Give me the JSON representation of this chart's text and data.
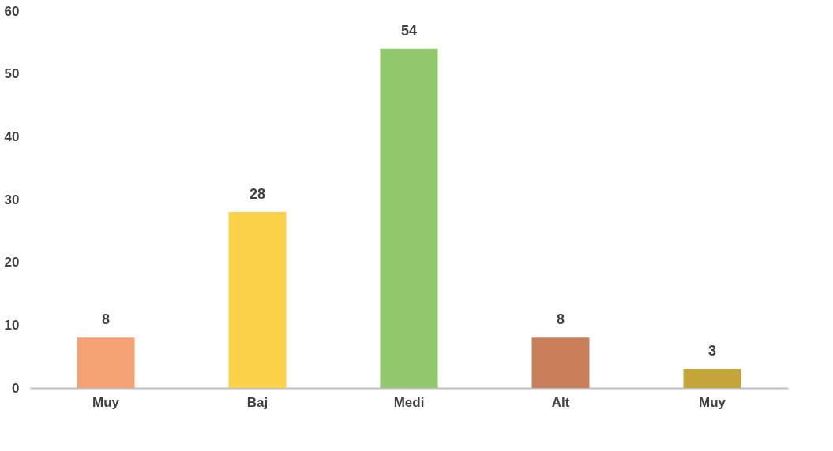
{
  "chart_data": {
    "type": "bar",
    "categories": [
      "Muy",
      "Baj",
      "Medi",
      "Alt",
      "Muy"
    ],
    "values": [
      8,
      28,
      54,
      8,
      3
    ],
    "colors": [
      "#f4a274",
      "#fbd24a",
      "#93c96e",
      "#c9805a",
      "#c4a53a"
    ],
    "ylim": [
      0,
      60
    ],
    "yticks": [
      0,
      10,
      20,
      30,
      40,
      50,
      60
    ],
    "grid": false,
    "data_labels": true
  }
}
